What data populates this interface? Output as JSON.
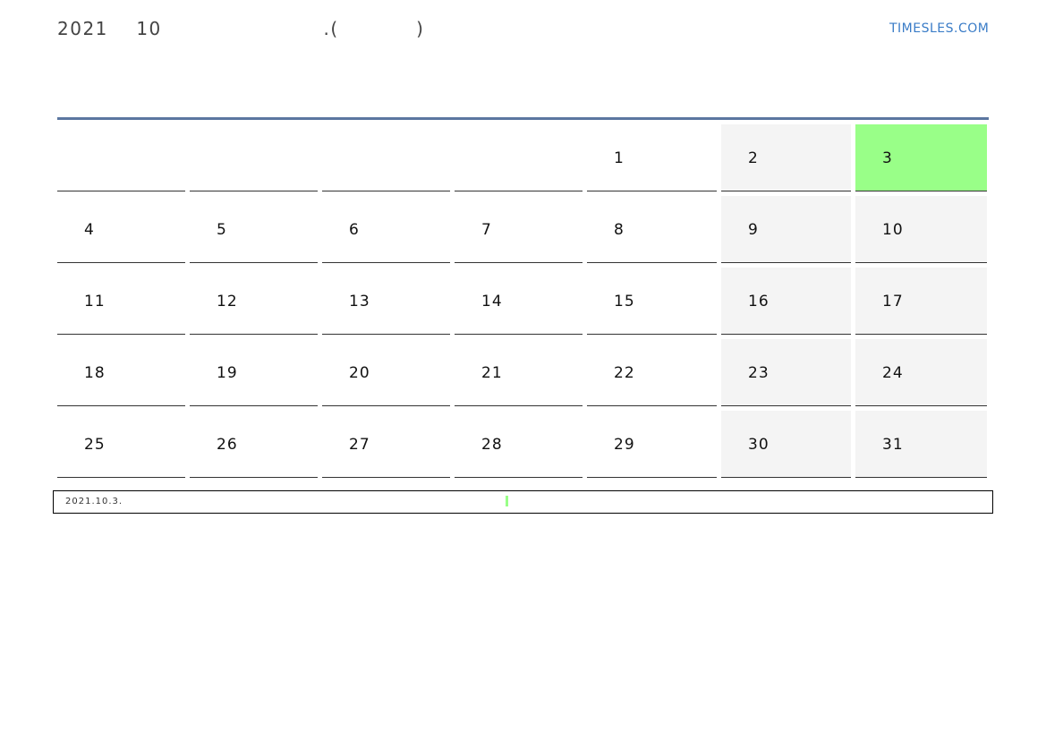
{
  "header": {
    "title": "2021    10                       .(           )",
    "logo": "TIMESLES.COM"
  },
  "colors": {
    "accent": "#5b76a0",
    "today": "#99ff88",
    "weekend": "#f4f4f4",
    "logo": "#3a7cc7"
  },
  "calendar": {
    "year": 2021,
    "month": 10,
    "today": "3",
    "cells": [
      "",
      "",
      "",
      "",
      "1",
      "2",
      "3",
      "4",
      "5",
      "6",
      "7",
      "8",
      "9",
      "10",
      "11",
      "12",
      "13",
      "14",
      "15",
      "16",
      "17",
      "18",
      "19",
      "20",
      "21",
      "22",
      "23",
      "24",
      "25",
      "26",
      "27",
      "28",
      "29",
      "30",
      "31"
    ]
  },
  "footer": {
    "date": "2021.10.3."
  }
}
